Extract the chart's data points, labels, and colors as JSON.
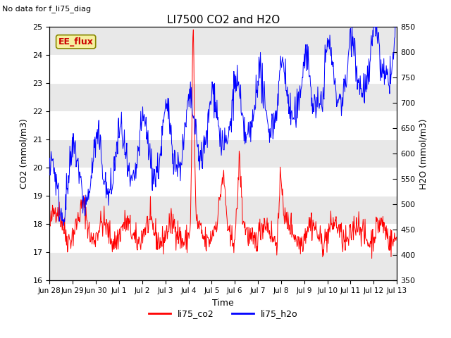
{
  "title": "LI7500 CO2 and H2O",
  "xlabel": "Time",
  "ylabel_left": "CO2 (mmol/m3)",
  "ylabel_right": "H2O (mmol/m3)",
  "ylim_left": [
    16.0,
    25.0
  ],
  "ylim_right": [
    350,
    850
  ],
  "yticks_left": [
    16.0,
    17.0,
    18.0,
    19.0,
    20.0,
    21.0,
    22.0,
    23.0,
    24.0,
    25.0
  ],
  "yticks_right": [
    350,
    400,
    450,
    500,
    550,
    600,
    650,
    700,
    750,
    800,
    850
  ],
  "no_data_text": "No data for f_li75_diag",
  "ee_flux_label": "EE_flux",
  "legend_labels": [
    "li75_co2",
    "li75_h2o"
  ],
  "line_colors": [
    "#ff0000",
    "#0000ff"
  ],
  "plot_bg": "#e8e8e8",
  "white_band": "#ffffff",
  "title_fontsize": 11,
  "axis_fontsize": 9,
  "tick_fontsize": 8,
  "legend_fontsize": 9
}
